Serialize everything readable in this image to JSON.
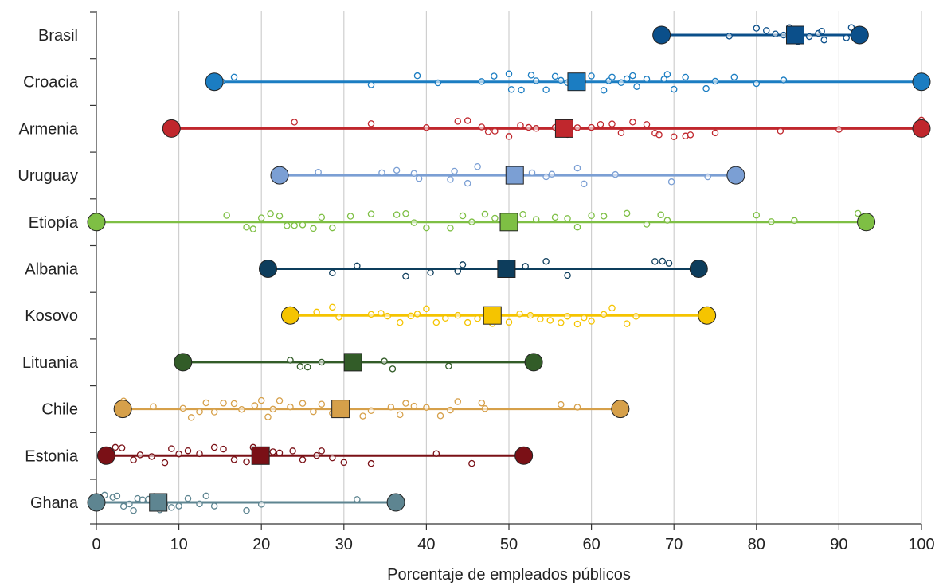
{
  "chart_data": {
    "type": "dot-range",
    "xlabel": "Porcentaje de empleados públicos",
    "xlim": [
      0,
      100
    ],
    "xticks": [
      "0",
      "10",
      "20",
      "30",
      "40",
      "50",
      "60",
      "70",
      "80",
      "90",
      "100"
    ],
    "grid": "vertical",
    "legend": "none",
    "series": [
      {
        "name": "Brasil",
        "color": "#0b4f8a",
        "min": 68.5,
        "max": 92.5,
        "mean": 84.7,
        "points": [
          68.6,
          76.7,
          80,
          81.2,
          82.3,
          83.3,
          84,
          85,
          86.4,
          87.5,
          87.9,
          88.2,
          90.9,
          91.5
        ]
      },
      {
        "name": "Croacia",
        "color": "#1b7dc2",
        "min": 14.3,
        "max": 100,
        "mean": 58.2,
        "points": [
          15.2,
          16.7,
          33.3,
          38.9,
          41.4,
          46.7,
          48.2,
          50,
          50.3,
          51.5,
          52.7,
          53.3,
          54.5,
          55.6,
          56.3,
          57.1,
          57.9,
          58.6,
          60,
          61.5,
          62.1,
          62.5,
          63.6,
          64.3,
          65,
          65.5,
          66.7,
          68.8,
          69.2,
          70,
          71.4,
          73.9,
          75,
          77.3,
          80,
          83.3,
          100
        ]
      },
      {
        "name": "Armenia",
        "color": "#c0272d",
        "min": 9.1,
        "max": 100,
        "mean": 56.7,
        "points": [
          9.1,
          24,
          33.3,
          40,
          43.8,
          45,
          46.7,
          47.5,
          48.3,
          50,
          51.4,
          52.4,
          53.3,
          55.6,
          57.1,
          58.3,
          60,
          61.1,
          62.5,
          63.6,
          65,
          66.7,
          67.7,
          68.2,
          70,
          71.4,
          72,
          75,
          82.9,
          90,
          100
        ]
      },
      {
        "name": "Uruguay",
        "color": "#7b9fd4",
        "min": 22.2,
        "max": 77.5,
        "mean": 50.7,
        "points": [
          26.9,
          34.6,
          36.4,
          38.5,
          39.1,
          42.9,
          43.4,
          45,
          46.2,
          52.8,
          54.5,
          55.2,
          58.3,
          59.1,
          62.9,
          69.7,
          74.1,
          77.5
        ]
      },
      {
        "name": "Etiopía",
        "color": "#7ebf44",
        "min": 0,
        "max": 93.3,
        "mean": 50,
        "points": [
          15.8,
          18.2,
          19,
          20,
          21.1,
          22.2,
          23.1,
          24,
          25,
          26.3,
          27.3,
          28.6,
          30.8,
          33.3,
          36.4,
          37.5,
          38.5,
          40,
          42.9,
          44.4,
          45.5,
          47.1,
          48.3,
          50,
          51.7,
          53.3,
          55.6,
          57.1,
          58.3,
          60,
          61.5,
          64.3,
          66.7,
          68.4,
          69.2,
          80,
          81.8,
          84.6,
          92.3,
          93.3
        ]
      },
      {
        "name": "Albania",
        "color": "#0d3d5c",
        "min": 20.8,
        "max": 73,
        "mean": 49.7,
        "points": [
          20.8,
          28.6,
          31.6,
          37.5,
          40.5,
          43.8,
          44.4,
          52,
          54.5,
          57.1,
          67.7,
          68.6,
          69.4
        ]
      },
      {
        "name": "Kosovo",
        "color": "#f5c400",
        "min": 23.5,
        "max": 74,
        "mean": 48,
        "points": [
          26.7,
          28.6,
          29.4,
          33.3,
          34.5,
          35.3,
          36.8,
          38.1,
          38.9,
          40,
          41.2,
          42.3,
          43.8,
          45,
          46.2,
          47.4,
          48,
          50,
          51.3,
          52.6,
          53.8,
          55,
          56.3,
          57.1,
          58.3,
          59.1,
          60,
          61.5,
          62.5,
          64.3,
          65.4,
          74
        ]
      },
      {
        "name": "Lituania",
        "color": "#325c28",
        "min": 10.5,
        "max": 53,
        "mean": 31.1,
        "points": [
          23.5,
          24.7,
          25.6,
          27.3,
          34.9,
          35.9,
          42.7
        ]
      },
      {
        "name": "Chile",
        "color": "#d6a04a",
        "min": 3.2,
        "max": 63.5,
        "mean": 29.6,
        "points": [
          3.3,
          6.9,
          10.5,
          11.5,
          12.5,
          13.3,
          14.3,
          15.4,
          16.7,
          17.6,
          19.2,
          20,
          20.8,
          21.4,
          22.2,
          23.5,
          25,
          26.3,
          27.3,
          28.6,
          30,
          32.3,
          33.3,
          35.7,
          36.8,
          37.5,
          38.5,
          40,
          41.7,
          42.9,
          43.8,
          46.7,
          47.1,
          56.3,
          58.3,
          63.5
        ]
      },
      {
        "name": "Estonia",
        "color": "#7a1016",
        "min": 1.2,
        "max": 51.8,
        "mean": 19.9,
        "points": [
          1.2,
          2.3,
          3.1,
          4.5,
          5.3,
          6.7,
          8.3,
          9.1,
          10,
          11.1,
          12.5,
          14.3,
          15.4,
          16.7,
          18.2,
          19,
          20,
          21.4,
          22.2,
          23.8,
          25,
          26.7,
          27.3,
          28.6,
          30,
          33.3,
          41.2,
          45.5,
          51.8
        ]
      },
      {
        "name": "Ghana",
        "color": "#5e8591",
        "min": 0,
        "max": 36.3,
        "mean": 7.5,
        "points": [
          0,
          1,
          2,
          2.5,
          3.3,
          4,
          4.5,
          5,
          5.6,
          6.3,
          7,
          7.7,
          8.3,
          9.1,
          10,
          11.1,
          12.5,
          13.3,
          14.3,
          18.2,
          20,
          31.6
        ]
      }
    ]
  }
}
